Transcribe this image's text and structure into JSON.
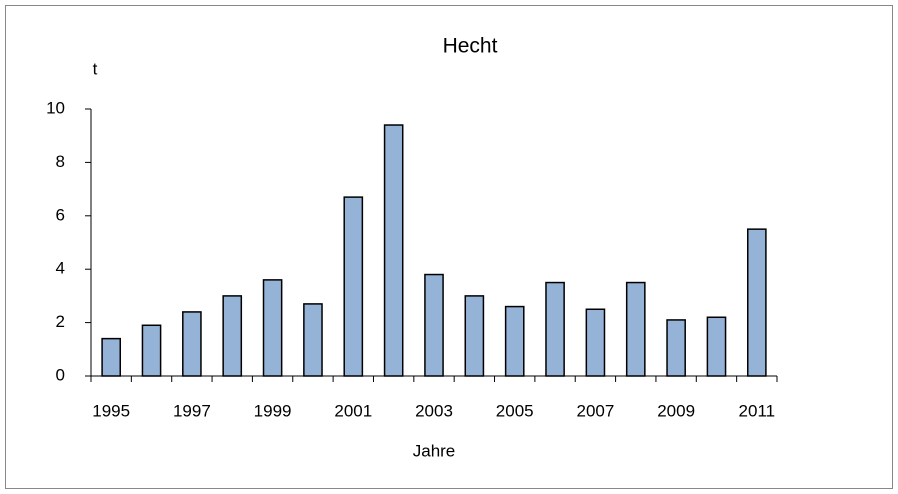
{
  "chart_data": {
    "type": "bar",
    "title": "Hecht",
    "y_label": "t",
    "x_label": "Jahre",
    "categories": [
      "1995",
      null,
      "1997",
      null,
      "1999",
      null,
      "2001",
      null,
      "2003",
      null,
      "2005",
      null,
      "2007",
      null,
      "2009",
      null,
      "2011"
    ],
    "values": [
      1.4,
      1.9,
      2.4,
      3.0,
      3.6,
      2.7,
      6.7,
      9.4,
      3.8,
      3.0,
      2.6,
      3.5,
      2.5,
      3.5,
      2.1,
      2.2,
      5.5
    ],
    "color": "#95b3d7",
    "ylim": [
      0,
      10
    ],
    "yticks": [
      0,
      2,
      4,
      6,
      8,
      10
    ],
    "grid": false
  }
}
